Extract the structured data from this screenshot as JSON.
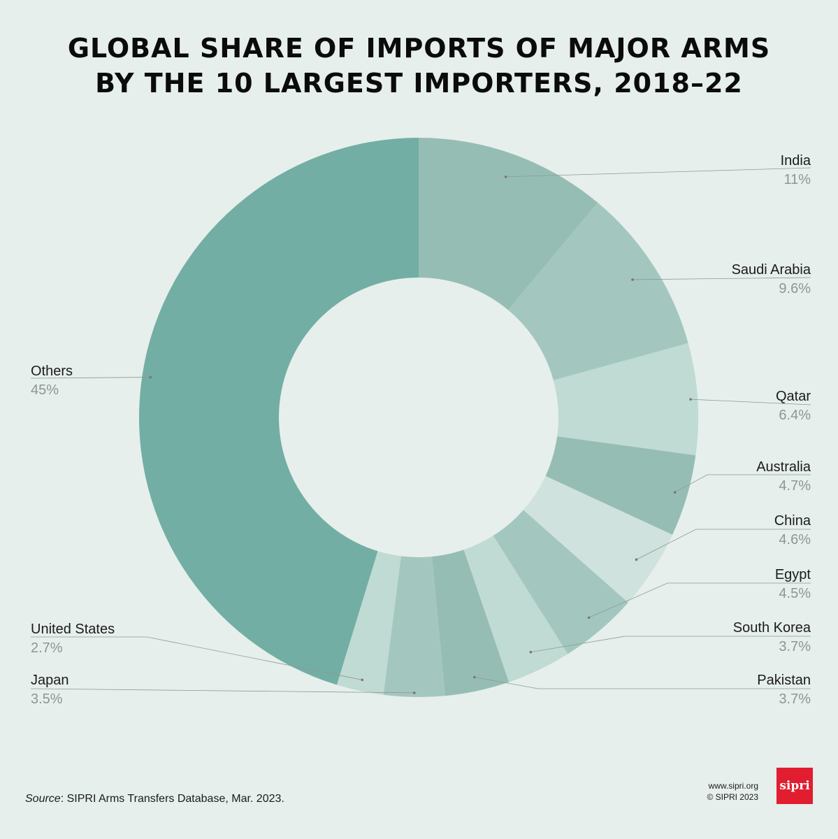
{
  "header": {
    "title_line1": "GLOBAL SHARE OF IMPORTS OF MAJOR ARMS",
    "title_line2": "BY THE 10 LARGEST IMPORTERS, 2018–22"
  },
  "chart_data": {
    "type": "pie",
    "title": "GLOBAL SHARE OF IMPORTS OF MAJOR ARMS BY THE 10 LARGEST IMPORTERS, 2018–22",
    "donut": true,
    "slices": [
      {
        "label": "India",
        "value": 11,
        "value_label": "11%",
        "color": "#96bdb4"
      },
      {
        "label": "Saudi Arabia",
        "value": 9.6,
        "value_label": "9.6%",
        "color": "#a3c7be"
      },
      {
        "label": "Qatar",
        "value": 6.4,
        "value_label": "6.4%",
        "color": "#c0dad4"
      },
      {
        "label": "Australia",
        "value": 4.7,
        "value_label": "4.7%",
        "color": "#96bdb4"
      },
      {
        "label": "China",
        "value": 4.6,
        "value_label": "4.6%",
        "color": "#cfe2dd"
      },
      {
        "label": "Egypt",
        "value": 4.5,
        "value_label": "4.5%",
        "color": "#a3c7be"
      },
      {
        "label": "South Korea",
        "value": 3.7,
        "value_label": "3.7%",
        "color": "#c0dad4"
      },
      {
        "label": "Pakistan",
        "value": 3.7,
        "value_label": "3.7%",
        "color": "#96bdb4"
      },
      {
        "label": "Japan",
        "value": 3.5,
        "value_label": "3.5%",
        "color": "#a3c7be"
      },
      {
        "label": "United States",
        "value": 2.7,
        "value_label": "2.7%",
        "color": "#c0dad4"
      },
      {
        "label": "Others",
        "value": 45,
        "value_label": "45%",
        "color": "#72aea3"
      }
    ]
  },
  "footer": {
    "source_label": "Source",
    "source_text": ": SIPRI Arms Transfers Database, Mar. 2023.",
    "website": "www.sipri.org",
    "copyright": "© SIPRI 2023",
    "logo_text": "sipri"
  }
}
